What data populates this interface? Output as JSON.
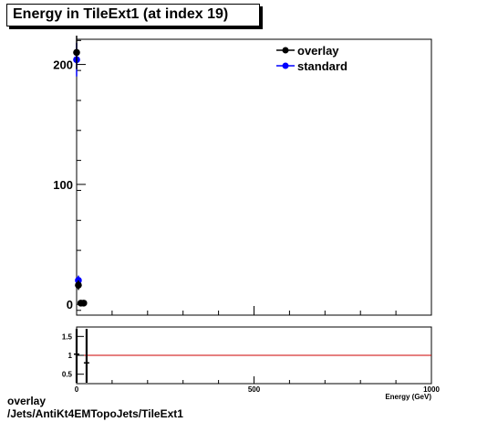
{
  "title": "Energy in TileExt1 (at index 19)",
  "footer": {
    "line1": "overlay",
    "line2": "/Jets/AntiKt4EMTopoJets/TileExt1"
  },
  "colors": {
    "overlay": "#000000",
    "standard": "#0000ff",
    "ratio_line": "#cc0000"
  },
  "chart_data": [
    {
      "type": "scatter",
      "panel": "main",
      "xlabel": "Energy (GeV)",
      "ylabel": "",
      "xlim": [
        0,
        1000
      ],
      "ylim": [
        -9,
        221
      ],
      "y_ticks": [
        0,
        100,
        200
      ],
      "x_ticks": [
        0,
        500,
        1000
      ],
      "legend": {
        "placement": "top-right",
        "entries": [
          "overlay",
          "standard"
        ]
      },
      "series": [
        {
          "name": "overlay",
          "color": "#000000",
          "x": [
            0,
            5,
            12,
            20
          ],
          "y": [
            210,
            16,
            1,
            1
          ],
          "yerr": [
            14,
            4,
            1,
            1
          ]
        },
        {
          "name": "standard",
          "color": "#0000ff",
          "x": [
            0,
            5
          ],
          "y": [
            204,
            20
          ],
          "yerr": [
            14,
            4
          ]
        }
      ]
    },
    {
      "type": "scatter",
      "panel": "ratio",
      "xlim": [
        0,
        1000
      ],
      "ylim": [
        0.25,
        1.75
      ],
      "y_ticks": [
        0.5,
        1,
        1.5
      ],
      "y_tick_labels": [
        "0.5",
        "1",
        "1.5"
      ],
      "x_ticks": [
        0,
        500,
        1000
      ],
      "reference_line": 1,
      "x": [
        0,
        5
      ],
      "y": [
        1.03,
        0.8
      ],
      "yerr": [
        0.1,
        0.3
      ]
    }
  ]
}
